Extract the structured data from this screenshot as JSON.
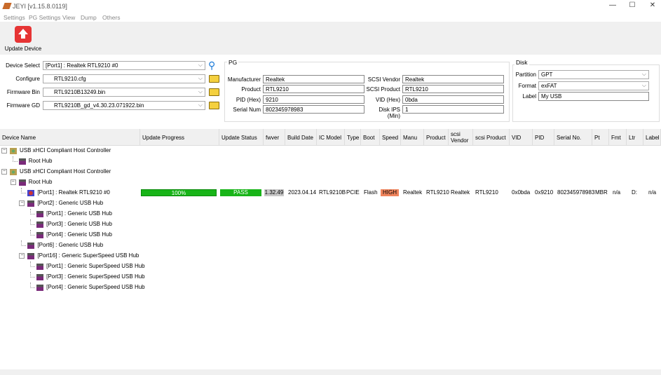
{
  "window": {
    "title": "JEYI [v1.15.8.0119]",
    "min": "—",
    "max": "☐",
    "close": "✕"
  },
  "menu": [
    "Settings",
    "PG Settings",
    "View",
    "Dump",
    "Others"
  ],
  "toolbar": {
    "update_label": "Update Device"
  },
  "form": {
    "device_select_label": "Device Select",
    "device_select": "[Port1] : Realtek RTL9210 #0",
    "configure_label": "Configure",
    "configure": "RTL9210.cfg",
    "fw_bin_label": "Firmware Bin",
    "fw_bin": "RTL9210B13249.bin",
    "fw_gd_label": "Firmware GD",
    "fw_gd": "RTL9210B_gd_v4.30.23.071922.bin"
  },
  "pg": {
    "title": "PG",
    "fields": [
      {
        "label": "Manufacturer",
        "value": "Realtek"
      },
      {
        "label": "Product",
        "value": "RTL9210"
      },
      {
        "label": "PID (Hex)",
        "value": "9210"
      },
      {
        "label": "Serial Num",
        "value": "802345978983"
      }
    ],
    "fields2": [
      {
        "label": "SCSI Vendor",
        "value": "Realtek"
      },
      {
        "label": "SCSI Product",
        "value": "RTL9210"
      },
      {
        "label": "VID (Hex)",
        "value": "0bda"
      },
      {
        "label": "Disk IPS (Min)",
        "value": "1"
      }
    ]
  },
  "disk": {
    "title": "Disk",
    "partition_label": "Partition",
    "partition": "GPT",
    "format_label": "Format",
    "format": "exFAT",
    "label_label": "Label",
    "label": "My USB"
  },
  "columns": [
    "Device Name",
    "Update Progress",
    "Update Status",
    "fwver",
    "Build Date",
    "IC Model",
    "Type",
    "Boot",
    "Speed",
    "Manu",
    "Product",
    "scsi Vendor",
    "scsi Product",
    "VID",
    "PID",
    "Serial No.",
    "Pt",
    "Fmt",
    "Ltr",
    "Label"
  ],
  "tree": [
    {
      "level": 0,
      "label": "USB xHCI Compliant Host Controller",
      "icon": "controller",
      "expand": "−"
    },
    {
      "level": 1,
      "label": "Root Hub",
      "icon": "hub"
    },
    {
      "level": 0,
      "label": "USB xHCI Compliant Host Controller",
      "icon": "controller",
      "expand": "−"
    },
    {
      "level": 1,
      "label": "Root Hub",
      "icon": "hub",
      "expand": "−"
    },
    {
      "level": 2,
      "label": "[Port1] : Realtek RTL9210 #0",
      "icon": "device",
      "details": true
    },
    {
      "level": 2,
      "label": "[Port2] : Generic USB Hub",
      "icon": "hub",
      "expand": "−"
    },
    {
      "level": 3,
      "label": "[Port1] : Generic USB Hub",
      "icon": "hub"
    },
    {
      "level": 3,
      "label": "[Port3] : Generic USB Hub",
      "icon": "hub"
    },
    {
      "level": 3,
      "label": "[Port4] : Generic USB Hub",
      "icon": "hub"
    },
    {
      "level": 2,
      "label": "[Port6] : Generic USB Hub",
      "icon": "hub"
    },
    {
      "level": 2,
      "label": "[Port16] : Generic SuperSpeed USB Hub",
      "icon": "hub",
      "expand": "−"
    },
    {
      "level": 3,
      "label": "[Port1] : Generic SuperSpeed USB Hub",
      "icon": "hub"
    },
    {
      "level": 3,
      "label": "[Port3] : Generic SuperSpeed USB Hub",
      "icon": "hub"
    },
    {
      "level": 3,
      "label": "[Port4] : Generic SuperSpeed USB Hub",
      "icon": "hub"
    }
  ],
  "device_row": {
    "progress": 100,
    "progress_text": "100%",
    "status": "PASS",
    "fwver": "1.32.49",
    "build_date": "2023.04.14",
    "ic_model": "RTL9210B",
    "type": "PCIE",
    "boot": "Flash",
    "speed": "HIGH",
    "manu": "Realtek",
    "product": "RTL9210",
    "scsi_vendor": "Realtek",
    "scsi_product": "RTL9210",
    "vid": "0x0bda",
    "pid": "0x9210",
    "serial": "802345978983",
    "pt": "MBR",
    "fmt": "n/a",
    "ltr": "D:",
    "label": "n/a"
  },
  "colors": {
    "progress": "#18b418",
    "pass": "#18b418",
    "speed_high": "#f0845c",
    "fwver_bg": "#c8c8c8",
    "update_icon": "#e63434"
  }
}
